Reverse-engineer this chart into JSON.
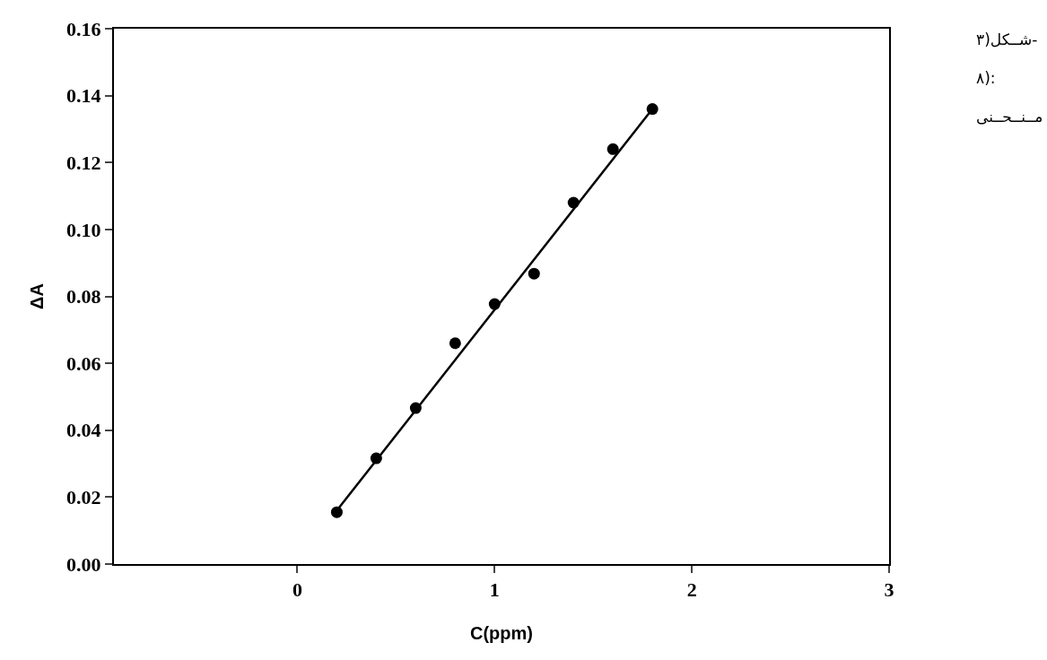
{
  "chart_data": {
    "type": "scatter",
    "xlabel": "C(ppm)",
    "ylabel": "ΔA",
    "x": [
      0.2,
      0.4,
      0.6,
      0.8,
      1.0,
      1.2,
      1.4,
      1.6,
      1.8
    ],
    "series": [
      {
        "color": "#000000",
        "marker": "circle",
        "values": [
          0.0155,
          0.0316,
          0.0466,
          0.066,
          0.0777,
          0.0868,
          0.108,
          0.124,
          0.136
        ]
      },
      {
        "type": "line",
        "color": "#000000",
        "marker": "none",
        "line_style": "solid",
        "x": [
          0.2,
          1.8
        ],
        "values": [
          0.016,
          0.136
        ]
      }
    ],
    "xlim": [
      -0.93,
      3
    ],
    "xticks": [
      0,
      1,
      2,
      3
    ],
    "ylim": [
      0,
      0.16
    ],
    "yticks": [
      {
        "value": 0,
        "label": "0.00"
      },
      {
        "value": 0.02,
        "label": "0.02"
      },
      {
        "value": 0.04,
        "label": "0.04"
      },
      {
        "value": 0.06,
        "label": "0.06"
      },
      {
        "value": 0.08,
        "label": "0.08"
      },
      {
        "value": 0.1,
        "label": "0.10"
      },
      {
        "value": 0.12,
        "label": "0.12"
      },
      {
        "value": 0.14,
        "label": "0.14"
      },
      {
        "value": 0.16,
        "label": "0.16"
      }
    ],
    "annotations": [
      "شــکل(۳-",
      "۸):",
      "مــنــحــنی"
    ]
  }
}
